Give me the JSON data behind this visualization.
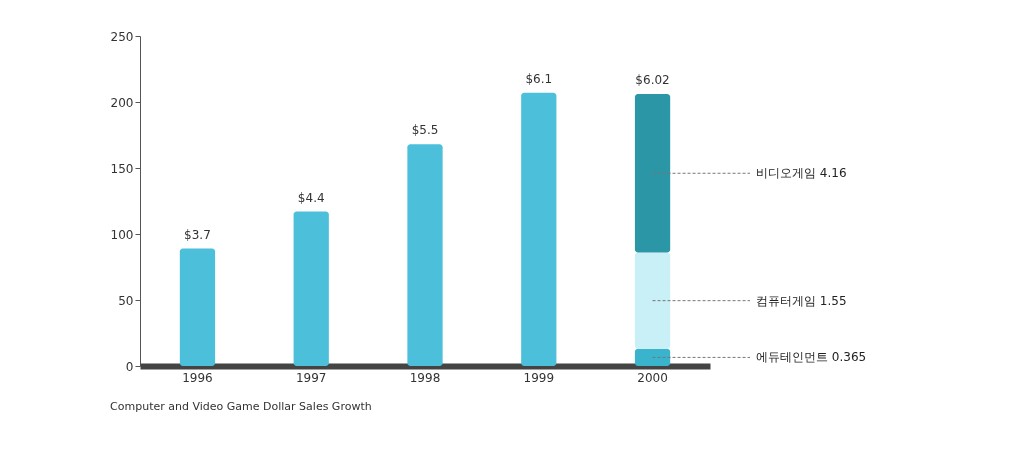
{
  "chart_data": {
    "type": "bar",
    "title": "Computer and Video Game Dollar Sales Growth",
    "categories": [
      "1996",
      "1997",
      "1998",
      "1999",
      "2000"
    ],
    "stacked": true,
    "series": [
      {
        "color": "#4cc0da",
        "values": [
          89,
          117,
          168,
          207,
          null
        ]
      },
      {
        "name": "에듀테인먼트 0.365",
        "color": "#3ab4cc",
        "values": [
          null,
          null,
          null,
          null,
          13
        ]
      },
      {
        "name": "컴퓨터게임 1.55",
        "color": "#c9eff7",
        "values": [
          null,
          null,
          null,
          null,
          73
        ]
      },
      {
        "name": "비디오게임 4.16",
        "color": "#2a96a6",
        "values": [
          null,
          null,
          null,
          null,
          120
        ]
      }
    ],
    "annotations": [
      "$3.7",
      "$4.4",
      "$5.5",
      "$6.1",
      "$6.02"
    ],
    "ylim": [
      0,
      250
    ],
    "yticks": [
      0,
      50,
      100,
      150,
      200,
      250
    ],
    "grid": false
  }
}
